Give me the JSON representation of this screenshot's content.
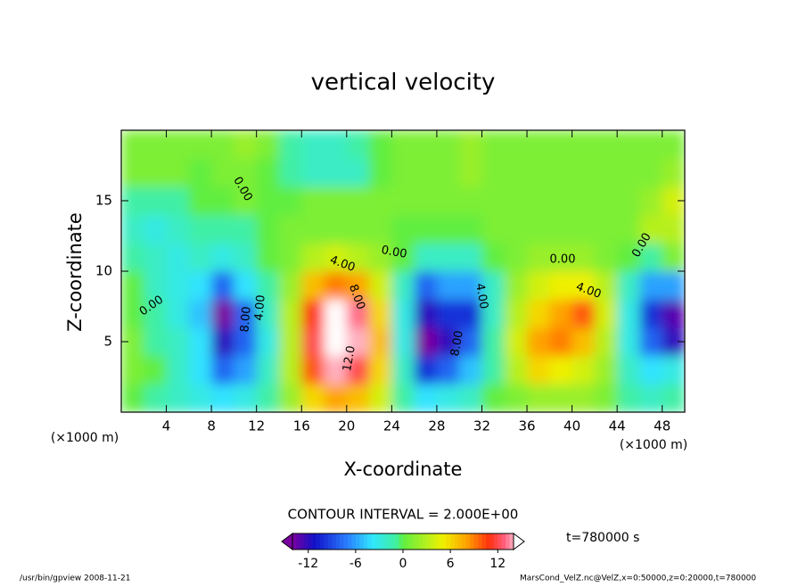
{
  "chart_data": {
    "type": "heatmap",
    "title": "vertical velocity",
    "xlabel": "X-coordinate",
    "ylabel": "Z-coordinate",
    "xunit": "(×1000 m)",
    "x": [
      1,
      3,
      5,
      7,
      9,
      11,
      13,
      15,
      17,
      19,
      21,
      23,
      25,
      27,
      29,
      31,
      33,
      35,
      37,
      39,
      41,
      43,
      45,
      47,
      49
    ],
    "y": [
      1,
      3,
      5,
      7,
      9,
      11,
      13,
      15,
      17,
      19
    ],
    "values": [
      [
        0,
        -1,
        -2,
        -3,
        -4,
        -3,
        -1,
        2,
        6,
        8,
        7,
        4,
        -1,
        -4,
        -3,
        -2,
        0,
        1,
        2,
        2,
        2,
        1,
        -1,
        -2,
        -1
      ],
      [
        1,
        0,
        -2,
        -4,
        -8,
        -6,
        -2,
        3,
        10,
        14,
        12,
        6,
        -2,
        -10,
        -8,
        -5,
        -1,
        3,
        6,
        5,
        4,
        2,
        -2,
        -4,
        -3
      ],
      [
        1,
        -1,
        -2,
        -4,
        -12,
        -8,
        -3,
        3,
        12,
        15,
        14,
        7,
        -3,
        -14,
        -12,
        -8,
        -1,
        4,
        8,
        9,
        7,
        3,
        -3,
        -8,
        -12
      ],
      [
        0,
        -1,
        -3,
        -5,
        -14,
        -8,
        -2,
        3,
        11,
        15,
        13,
        6,
        -3,
        -12,
        -10,
        -10,
        -2,
        3,
        6,
        8,
        10,
        4,
        -3,
        -10,
        -13
      ],
      [
        0,
        -2,
        -3,
        -4,
        -8,
        -4,
        -1,
        2,
        7,
        9,
        8,
        4,
        -2,
        -8,
        -6,
        -6,
        -2,
        2,
        4,
        5,
        5,
        3,
        -2,
        -6,
        -6
      ],
      [
        -1,
        -2,
        -3,
        -2,
        -3,
        -2,
        0,
        1,
        3,
        4,
        3,
        2,
        0,
        -2,
        -2,
        -2,
        0,
        1,
        2,
        2,
        2,
        1,
        0,
        -1,
        1
      ],
      [
        -2,
        -3,
        -2,
        -1,
        -1,
        -1,
        0,
        1,
        1,
        1,
        1,
        1,
        0,
        0,
        0,
        0,
        1,
        1,
        1,
        1,
        1,
        1,
        1,
        3,
        3
      ],
      [
        -1,
        -1,
        -1,
        0,
        0,
        1,
        0,
        0,
        1,
        1,
        1,
        1,
        1,
        1,
        1,
        1,
        1,
        1,
        1,
        1,
        1,
        1,
        1,
        2,
        4
      ],
      [
        1,
        1,
        1,
        0,
        1,
        1,
        0,
        -1,
        -2,
        -2,
        -2,
        0,
        1,
        1,
        1,
        2,
        1,
        1,
        1,
        1,
        1,
        1,
        1,
        1,
        2
      ],
      [
        1,
        1,
        1,
        1,
        1,
        2,
        1,
        -1,
        -2,
        -2,
        -1,
        0,
        1,
        1,
        1,
        2,
        1,
        1,
        1,
        1,
        1,
        1,
        1,
        1,
        1
      ]
    ],
    "xlim": [
      0,
      50
    ],
    "ylim": [
      0,
      20
    ],
    "xticks": [
      4,
      8,
      12,
      16,
      20,
      24,
      28,
      32,
      36,
      40,
      44,
      48
    ],
    "yticks": [
      5,
      10,
      15
    ],
    "colorbar": {
      "lim": [
        -14,
        14
      ],
      "ticks": [
        -12,
        -6,
        0,
        6,
        12
      ]
    },
    "contour_interval": "CONTOUR INTERVAL = 2.000E+00",
    "time": "t=780000 s",
    "contour_labels": [
      "0.00",
      "0.00",
      "4.00",
      "8.00",
      "4.00",
      "8.00",
      "12.0",
      "0.00",
      "4.00",
      "8.00",
      "0.00",
      "4.00",
      "0.00"
    ],
    "footer_left": "/usr/bin/gpview  2008-11-21",
    "footer_right": "MarsCond_VelZ.nc@VelZ,x=0:50000,z=0:20000,t=780000"
  }
}
